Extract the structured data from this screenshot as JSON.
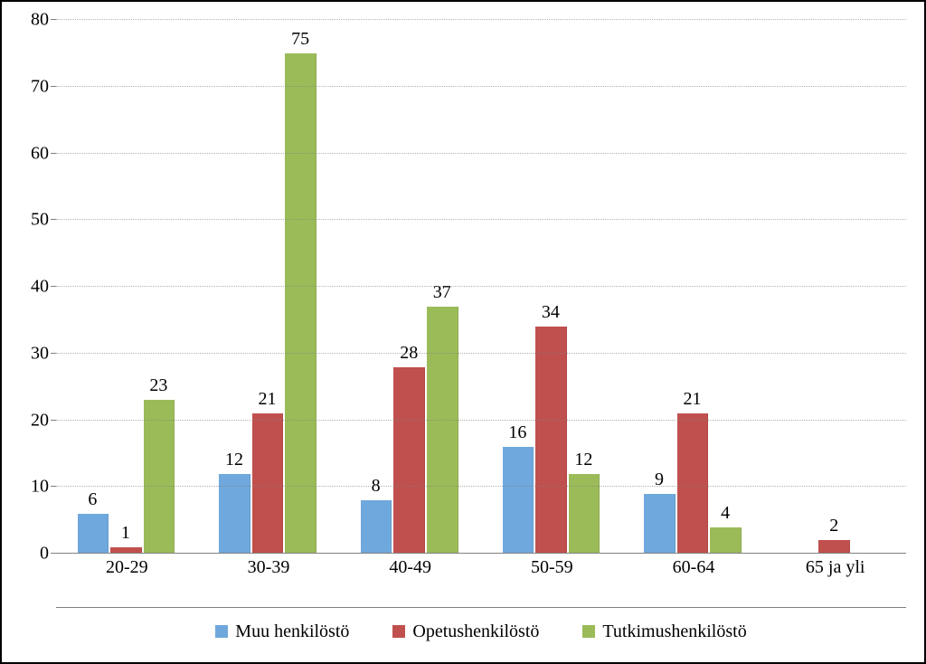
{
  "chart": {
    "type": "bar",
    "ylim": [
      0,
      80
    ],
    "ytick_step": 10,
    "yticks": [
      0,
      10,
      20,
      30,
      40,
      50,
      60,
      70,
      80
    ],
    "label_fontsize": 20,
    "grid_color": "#7f7f7f",
    "grid_style": "dotted",
    "background_color": "#ffffff",
    "border_color": "#000000",
    "bar_gap_ratio": 0.15,
    "categories": [
      "20-29",
      "30-39",
      "40-49",
      "50-59",
      "60-64",
      "65 ja yli"
    ],
    "series": [
      {
        "name": "Muu henkilöstö",
        "color": "#6fa8dc",
        "values": [
          6,
          12,
          8,
          16,
          9,
          0
        ]
      },
      {
        "name": "Opetushenkilöstö",
        "color": "#c0504d",
        "values": [
          1,
          21,
          28,
          34,
          21,
          2
        ]
      },
      {
        "name": "Tutkimushenkilöstö",
        "color": "#9bbb59",
        "values": [
          23,
          75,
          37,
          12,
          4,
          0
        ]
      }
    ]
  }
}
